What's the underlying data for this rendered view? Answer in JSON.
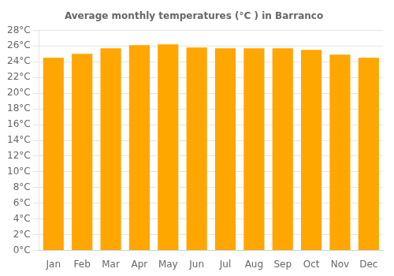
{
  "chart_data": {
    "type": "bar",
    "title": "Average monthly temperatures (°C ) in Barranco",
    "categories": [
      "Jan",
      "Feb",
      "Mar",
      "Apr",
      "May",
      "Jun",
      "Jul",
      "Aug",
      "Sep",
      "Oct",
      "Nov",
      "Dec"
    ],
    "values": [
      24.5,
      25.0,
      25.7,
      26.1,
      26.2,
      25.8,
      25.7,
      25.7,
      25.7,
      25.5,
      24.9,
      24.5
    ],
    "color": "#ffa600",
    "ylim": [
      0,
      28
    ],
    "yticks": [
      {
        "value": 0,
        "label": "0°C"
      },
      {
        "value": 2,
        "label": "2°C"
      },
      {
        "value": 4,
        "label": "4°C"
      },
      {
        "value": 6,
        "label": "6°C"
      },
      {
        "value": 8,
        "label": "8°C"
      },
      {
        "value": 10,
        "label": "10°C"
      },
      {
        "value": 12,
        "label": "12°C"
      },
      {
        "value": 14,
        "label": "14°C"
      },
      {
        "value": 16,
        "label": "16°C"
      },
      {
        "value": 18,
        "label": "18°C"
      },
      {
        "value": 20,
        "label": "20°C"
      },
      {
        "value": 22,
        "label": "22°C"
      },
      {
        "value": 24,
        "label": "24°C"
      },
      {
        "value": 26,
        "label": "26°C"
      },
      {
        "value": 28,
        "label": "28°C"
      }
    ],
    "grid": true
  }
}
